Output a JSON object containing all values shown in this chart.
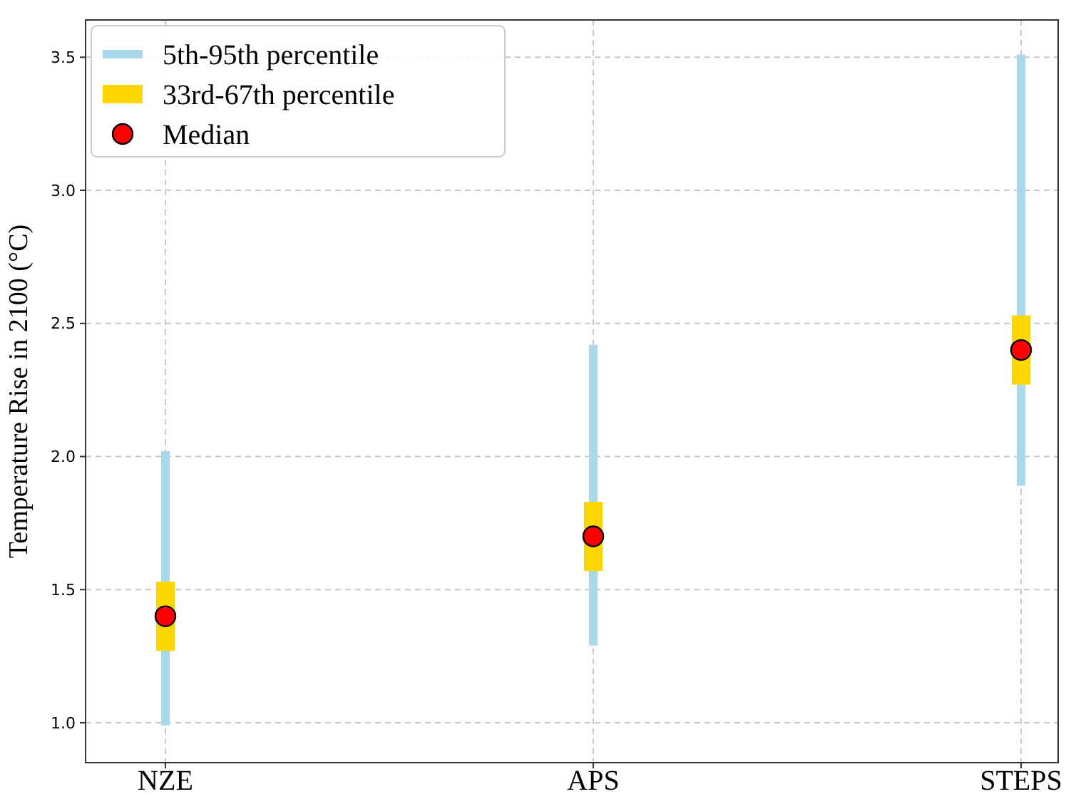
{
  "chart_data": {
    "type": "bar",
    "ylabel": "Temperature Rise in 2100 (°C)",
    "categories": [
      "NZE",
      "APS",
      "STEPS"
    ],
    "series": [
      {
        "name": "5th-95th percentile",
        "color": "#a8d8ea",
        "base": [
          0.99,
          1.29,
          1.89
        ],
        "values": [
          1.03,
          1.13,
          1.62
        ]
      },
      {
        "name": "33rd-67th percentile",
        "color": "#ffd700",
        "base": [
          1.27,
          1.57,
          2.27
        ],
        "values": [
          0.26,
          0.26,
          0.26
        ]
      },
      {
        "name": "Median",
        "type": "scatter",
        "color": "#ff0000",
        "marker": "circle",
        "x": [
          "NZE",
          "APS",
          "STEPS"
        ],
        "values": [
          1.4,
          1.7,
          2.4
        ]
      }
    ],
    "ylim": [
      0.85,
      3.64
    ],
    "yticks": [
      {
        "value": 1,
        "label": "1.0"
      },
      {
        "value": 1.5,
        "label": "1.5"
      },
      {
        "value": 2,
        "label": "2.0"
      },
      {
        "value": 2.5,
        "label": "2.5"
      },
      {
        "value": 3,
        "label": "3.0"
      },
      {
        "value": 3.5,
        "label": "3.5"
      }
    ],
    "grid": true,
    "legend": "top left"
  }
}
